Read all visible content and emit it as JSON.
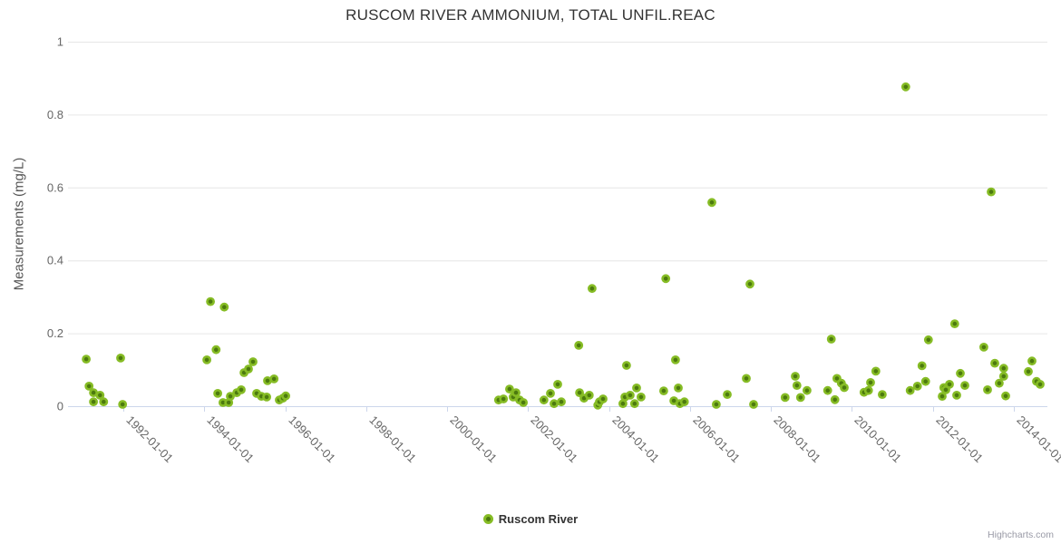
{
  "chart": {
    "credits": "Highcharts.com"
  },
  "chart_data": {
    "type": "scatter",
    "title": "RUSCOM RIVER AMMONIUM, TOTAL UNFIL.REAC",
    "xlabel": "",
    "ylabel": "Measurements (mg/L)",
    "xlim": [
      1990.63,
      2014.83
    ],
    "ylim": [
      0,
      1
    ],
    "grid": "horizontal-only",
    "legend_position": "bottom-center",
    "x_tick_years": [
      1992,
      1994,
      1996,
      1998,
      2000,
      2002,
      2004,
      2006,
      2008,
      2010,
      2012,
      2014
    ],
    "x_tick_labels": [
      "1992-01-01",
      "1994-01-01",
      "1996-01-01",
      "1998-01-01",
      "2000-01-01",
      "2002-01-01",
      "2004-01-01",
      "2006-01-01",
      "2008-01-01",
      "2010-01-01",
      "2012-01-01",
      "2014-01-01"
    ],
    "y_ticks": [
      0,
      0.2,
      0.4,
      0.6,
      0.8,
      1
    ],
    "colors": {
      "marker_ring": "#86bc25",
      "marker_center": "#4c7a0e",
      "gridline": "#e6e6e6",
      "axis_line": "#ccd6eb",
      "tick_label": "#666666",
      "title": "#333333"
    },
    "series": [
      {
        "name": "Ruscom River",
        "points": [
          [
            1991.08,
            0.129
          ],
          [
            1991.15,
            0.055
          ],
          [
            1991.26,
            0.037
          ],
          [
            1991.26,
            0.012
          ],
          [
            1991.42,
            0.03
          ],
          [
            1991.51,
            0.012
          ],
          [
            1991.93,
            0.132
          ],
          [
            1991.98,
            0.005
          ],
          [
            1994.06,
            0.127
          ],
          [
            1994.15,
            0.287
          ],
          [
            1994.29,
            0.155
          ],
          [
            1994.33,
            0.035
          ],
          [
            1994.46,
            0.01
          ],
          [
            1994.49,
            0.272
          ],
          [
            1994.6,
            0.01
          ],
          [
            1994.64,
            0.027
          ],
          [
            1994.8,
            0.037
          ],
          [
            1994.91,
            0.045
          ],
          [
            1994.98,
            0.092
          ],
          [
            1995.09,
            0.102
          ],
          [
            1995.2,
            0.122
          ],
          [
            1995.29,
            0.035
          ],
          [
            1995.41,
            0.027
          ],
          [
            1995.54,
            0.025
          ],
          [
            1995.56,
            0.07
          ],
          [
            1995.72,
            0.075
          ],
          [
            1995.85,
            0.017
          ],
          [
            1995.94,
            0.022
          ],
          [
            1996.01,
            0.028
          ],
          [
            2001.27,
            0.017
          ],
          [
            2001.39,
            0.02
          ],
          [
            2001.54,
            0.047
          ],
          [
            2001.63,
            0.025
          ],
          [
            2001.7,
            0.037
          ],
          [
            2001.79,
            0.017
          ],
          [
            2001.88,
            0.01
          ],
          [
            2002.39,
            0.017
          ],
          [
            2002.55,
            0.035
          ],
          [
            2002.64,
            0.007
          ],
          [
            2002.73,
            0.06
          ],
          [
            2002.82,
            0.012
          ],
          [
            2003.25,
            0.167
          ],
          [
            2003.27,
            0.037
          ],
          [
            2003.38,
            0.022
          ],
          [
            2003.51,
            0.03
          ],
          [
            2003.58,
            0.323
          ],
          [
            2003.72,
            0.003
          ],
          [
            2003.76,
            0.012
          ],
          [
            2003.85,
            0.02
          ],
          [
            2004.34,
            0.007
          ],
          [
            2004.39,
            0.025
          ],
          [
            2004.43,
            0.112
          ],
          [
            2004.52,
            0.03
          ],
          [
            2004.63,
            0.007
          ],
          [
            2004.68,
            0.05
          ],
          [
            2004.79,
            0.025
          ],
          [
            2005.35,
            0.042
          ],
          [
            2005.4,
            0.35
          ],
          [
            2005.6,
            0.015
          ],
          [
            2005.64,
            0.127
          ],
          [
            2005.71,
            0.05
          ],
          [
            2005.75,
            0.007
          ],
          [
            2005.86,
            0.012
          ],
          [
            2006.54,
            0.559
          ],
          [
            2006.65,
            0.005
          ],
          [
            2006.92,
            0.032
          ],
          [
            2007.39,
            0.076
          ],
          [
            2007.48,
            0.335
          ],
          [
            2007.57,
            0.005
          ],
          [
            2008.35,
            0.024
          ],
          [
            2008.6,
            0.082
          ],
          [
            2008.64,
            0.057
          ],
          [
            2008.73,
            0.024
          ],
          [
            2008.89,
            0.043
          ],
          [
            2009.4,
            0.043
          ],
          [
            2009.49,
            0.184
          ],
          [
            2009.58,
            0.018
          ],
          [
            2009.63,
            0.076
          ],
          [
            2009.74,
            0.063
          ],
          [
            2009.81,
            0.051
          ],
          [
            2010.3,
            0.038
          ],
          [
            2010.41,
            0.043
          ],
          [
            2010.46,
            0.065
          ],
          [
            2010.59,
            0.096
          ],
          [
            2010.75,
            0.032
          ],
          [
            2011.33,
            0.876
          ],
          [
            2011.44,
            0.043
          ],
          [
            2011.62,
            0.055
          ],
          [
            2011.73,
            0.111
          ],
          [
            2011.82,
            0.068
          ],
          [
            2011.89,
            0.182
          ],
          [
            2012.23,
            0.027
          ],
          [
            2012.27,
            0.051
          ],
          [
            2012.32,
            0.045
          ],
          [
            2012.41,
            0.06
          ],
          [
            2012.54,
            0.226
          ],
          [
            2012.59,
            0.03
          ],
          [
            2012.68,
            0.09
          ],
          [
            2012.79,
            0.057
          ],
          [
            2013.26,
            0.162
          ],
          [
            2013.35,
            0.045
          ],
          [
            2013.44,
            0.588
          ],
          [
            2013.53,
            0.118
          ],
          [
            2013.64,
            0.063
          ],
          [
            2013.75,
            0.104
          ],
          [
            2013.75,
            0.082
          ],
          [
            2013.8,
            0.028
          ],
          [
            2014.36,
            0.095
          ],
          [
            2014.45,
            0.124
          ],
          [
            2014.56,
            0.068
          ],
          [
            2014.65,
            0.06
          ]
        ]
      }
    ]
  }
}
